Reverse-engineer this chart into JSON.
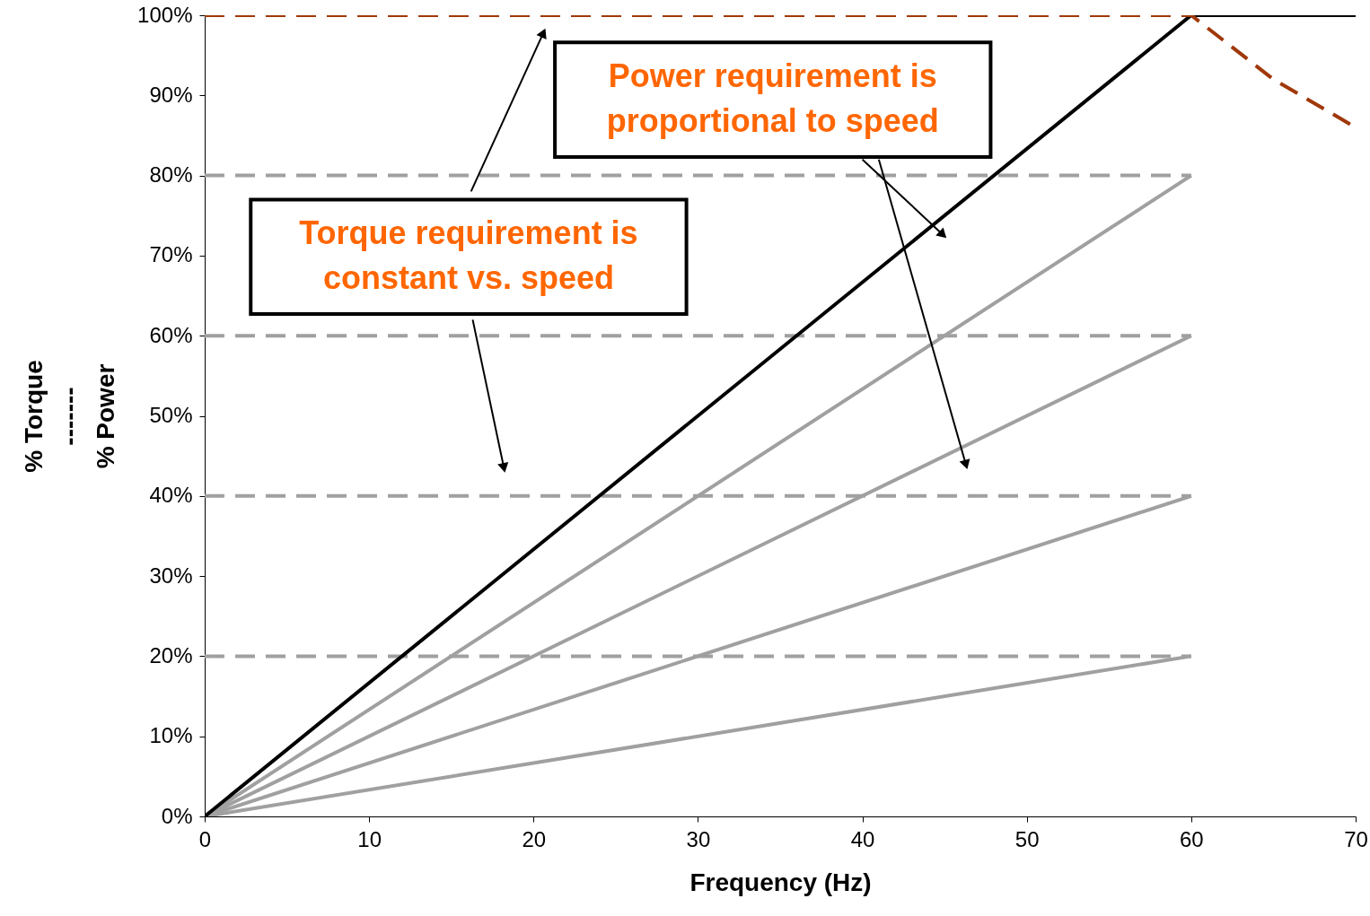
{
  "chart_data": {
    "type": "line",
    "xlabel": "Frequency (Hz)",
    "ylabel": "% Torque\n-------\n% Power",
    "xlim": [
      0,
      70
    ],
    "xticks": [
      0,
      10,
      20,
      30,
      40,
      50,
      60,
      70
    ],
    "ylim": [
      0,
      100
    ],
    "yticks": [
      {
        "value": 0,
        "label": "0%"
      },
      {
        "value": 10,
        "label": "10%"
      },
      {
        "value": 20,
        "label": "20%"
      },
      {
        "value": 30,
        "label": "30%"
      },
      {
        "value": 40,
        "label": "40%"
      },
      {
        "value": 50,
        "label": "50%"
      },
      {
        "value": 60,
        "label": "60%"
      },
      {
        "value": 70,
        "label": "70%"
      },
      {
        "value": 80,
        "label": "80%"
      },
      {
        "value": 90,
        "label": "90%"
      },
      {
        "value": 100,
        "label": "100%"
      }
    ],
    "grid": false,
    "marker": "none",
    "series": [
      {
        "color": "#a0a0a0",
        "line_style": "dashed",
        "x": [
          0,
          60
        ],
        "values": [
          80,
          80
        ]
      },
      {
        "color": "#a0a0a0",
        "line_style": "dashed",
        "x": [
          0,
          60
        ],
        "values": [
          60,
          60
        ]
      },
      {
        "color": "#a0a0a0",
        "line_style": "dashed",
        "x": [
          0,
          60
        ],
        "values": [
          40,
          40
        ]
      },
      {
        "color": "#a0a0a0",
        "line_style": "dashed",
        "x": [
          0,
          60
        ],
        "values": [
          20,
          20
        ]
      },
      {
        "color": "#a0a0a0",
        "line_style": "solid",
        "x": [
          0,
          60
        ],
        "values": [
          0,
          80
        ]
      },
      {
        "color": "#a0a0a0",
        "line_style": "solid",
        "x": [
          0,
          60
        ],
        "values": [
          0,
          60
        ]
      },
      {
        "color": "#a0a0a0",
        "line_style": "solid",
        "x": [
          0,
          60
        ],
        "values": [
          0,
          40
        ]
      },
      {
        "color": "#a0a0a0",
        "line_style": "solid",
        "x": [
          0,
          60
        ],
        "values": [
          0,
          20
        ]
      },
      {
        "color": "#000000",
        "line_style": "solid",
        "x": [
          0,
          60,
          70
        ],
        "values": [
          0,
          100,
          100
        ]
      },
      {
        "color": "#a0380a",
        "line_style": "dashed",
        "x": [
          0,
          60,
          65,
          70
        ],
        "values": [
          100,
          100,
          92,
          86
        ]
      }
    ],
    "annotations": [
      "Torque requirement is\nconstant vs. speed",
      "Power requirement is\nproportional to speed"
    ]
  }
}
